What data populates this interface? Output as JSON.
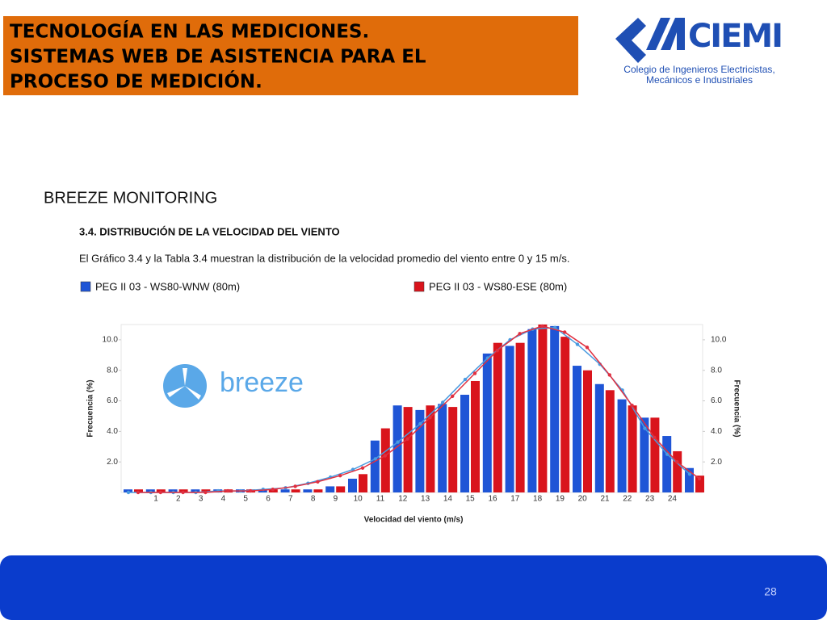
{
  "header": {
    "title": [
      "TECNOLOGÍA EN LAS MEDICIONES.",
      "SISTEMAS WEB DE ASISTENCIA PARA EL",
      "PROCESO DE MEDICIÓN."
    ],
    "logo": "CIEMI",
    "logo_subtitle": [
      "Colegio de Ingenieros Electricistas,",
      "Mecánicos e Industriales"
    ]
  },
  "section": "BREEZE MONITORING",
  "page_number": "28",
  "chart_data": {
    "type": "bar",
    "title": "3.4. DISTRIBUCIÓN DE LA VELOCIDAD DEL VIENTO",
    "subtitle": "El Gráfico 3.4 y la Tabla 3.4 muestran la distribución de la velocidad promedio del viento entre 0 y 15 m/s.",
    "watermark": "breeze",
    "x_label": "Velocidad del viento (m/s)",
    "y_label": "Frecuencia (%)",
    "y2_label": "Frecuencia (%)",
    "categories": [
      null,
      "1",
      "2",
      "3",
      "4",
      "5",
      "6",
      "7",
      "8",
      "9",
      "10",
      "11",
      "12",
      "13",
      "14",
      "15",
      "16",
      "17",
      "18",
      "19",
      "20",
      "21",
      "22",
      "23",
      "24",
      null
    ],
    "series": [
      {
        "name": "PEG II 03 - WS80-WNW (80m)",
        "color": "#1f55d6",
        "values": [
          0.2,
          0.2,
          0.2,
          0.2,
          0.2,
          0.2,
          0.2,
          0.2,
          0.2,
          0.4,
          0.9,
          3.4,
          5.7,
          5.4,
          5.8,
          6.4,
          9.1,
          9.6,
          10.7,
          10.9,
          8.3,
          7.1,
          6.1,
          4.9,
          3.7,
          1.6
        ]
      },
      {
        "name": "PEG II 03 - WS80-ESE (80m)",
        "color": "#d9141c",
        "values": [
          0.2,
          0.2,
          0.2,
          0.2,
          0.2,
          0.2,
          0.2,
          0.2,
          0.2,
          0.4,
          1.2,
          4.2,
          5.6,
          5.7,
          5.6,
          7.3,
          9.8,
          9.8,
          11.0,
          10.2,
          8.0,
          6.7,
          5.7,
          4.9,
          2.7,
          1.1
        ]
      }
    ],
    "fit_lines": [
      {
        "color": "#4a9be0",
        "values": [
          0,
          0,
          0,
          0,
          0.1,
          0.1,
          0.2,
          0.3,
          0.6,
          1.0,
          1.5,
          2.2,
          3.3,
          4.5,
          5.9,
          7.4,
          8.8,
          10.0,
          10.7,
          10.8,
          9.7,
          8.4,
          6.7,
          4.2,
          2.5,
          1.2
        ]
      },
      {
        "color": "#e03040",
        "values": [
          0,
          0,
          0,
          0,
          0.1,
          0.1,
          0.2,
          0.4,
          0.7,
          1.1,
          1.6,
          2.4,
          3.5,
          4.9,
          6.3,
          7.8,
          9.3,
          10.4,
          10.9,
          10.5,
          9.5,
          7.7,
          5.7,
          3.6,
          2.0,
          0.9
        ]
      }
    ],
    "ylim": [
      0,
      11
    ],
    "yticks": [
      {
        "value": 2,
        "label": "2.0"
      },
      {
        "value": 4,
        "label": "4.0"
      },
      {
        "value": 6,
        "label": "6.0"
      },
      {
        "value": 8,
        "label": "8.0"
      },
      {
        "value": 10,
        "label": "10.0"
      }
    ],
    "y2lim": [
      0,
      11
    ],
    "y2ticks": [
      {
        "value": 2,
        "label": "2.0"
      },
      {
        "value": 4,
        "label": "4.0"
      },
      {
        "value": 6,
        "label": "6.0"
      },
      {
        "value": 8,
        "label": "8.0"
      },
      {
        "value": 10,
        "label": "10.0"
      }
    ],
    "legend": "top"
  }
}
